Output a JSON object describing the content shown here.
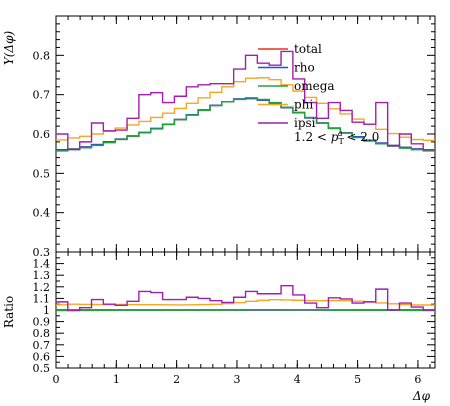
{
  "chart_data": {
    "type": "line",
    "style": "step-histogram",
    "xlabel": "Δφ",
    "ylabel": "Y(Δφ)",
    "ratio_ylabel": "Ratio",
    "xlim": [
      0,
      6.283
    ],
    "ylim": [
      0.3,
      0.9
    ],
    "ratio_ylim": [
      0.5,
      1.5
    ],
    "x_ticks": [
      0,
      1,
      2,
      3,
      4,
      5,
      6
    ],
    "x_tick_labels": [
      "0",
      "1",
      "2",
      "3",
      "4",
      "5",
      "6"
    ],
    "y_ticks": [
      0.3,
      0.4,
      0.5,
      0.6,
      0.7,
      0.8
    ],
    "y_tick_labels": [
      "0.3",
      "0.4",
      "0.5",
      "0.6",
      "0.7",
      "0.8"
    ],
    "ratio_ticks": [
      0.5,
      0.6,
      0.7,
      0.8,
      0.9,
      1,
      1.1,
      1.2,
      1.3,
      1.4
    ],
    "ratio_tick_labels": [
      "0.5",
      "0.6",
      "0.7",
      "0.8",
      "0.9",
      "1",
      "1.1",
      "1.2",
      "1.3",
      "1.4"
    ],
    "legend_position": "top-right",
    "annotation": "1.2 < p_T^a < 2.0",
    "annotation_parts": [
      "1.2 < ",
      "p",
      "T",
      "a",
      " < 2.0"
    ],
    "bin_edges": [
      0,
      0.196,
      0.393,
      0.589,
      0.785,
      0.982,
      1.178,
      1.374,
      1.571,
      1.767,
      1.963,
      2.16,
      2.356,
      2.553,
      2.749,
      2.945,
      3.142,
      3.338,
      3.534,
      3.731,
      3.927,
      4.123,
      4.32,
      4.516,
      4.712,
      4.909,
      5.105,
      5.301,
      5.498,
      5.694,
      5.89,
      6.087,
      6.283
    ],
    "series": [
      {
        "name": "total",
        "color": "#e8301f",
        "values": [
          0.56,
          0.562,
          0.567,
          0.573,
          0.58,
          0.587,
          0.595,
          0.604,
          0.614,
          0.625,
          0.637,
          0.649,
          0.661,
          0.673,
          0.682,
          0.689,
          0.69,
          0.686,
          0.678,
          0.667,
          0.654,
          0.641,
          0.628,
          0.615,
          0.603,
          0.593,
          0.584,
          0.577,
          0.571,
          0.566,
          0.562,
          0.56
        ]
      },
      {
        "name": "rho",
        "color": "#1f4fd6",
        "values": [
          0.56,
          0.562,
          0.567,
          0.573,
          0.58,
          0.587,
          0.595,
          0.604,
          0.614,
          0.625,
          0.637,
          0.649,
          0.661,
          0.673,
          0.682,
          0.689,
          0.69,
          0.686,
          0.678,
          0.667,
          0.654,
          0.641,
          0.628,
          0.615,
          0.603,
          0.593,
          0.584,
          0.577,
          0.571,
          0.566,
          0.562,
          0.56
        ]
      },
      {
        "name": "omega",
        "color": "#22a33a",
        "values": [
          0.557,
          0.561,
          0.565,
          0.571,
          0.578,
          0.586,
          0.594,
          0.603,
          0.613,
          0.624,
          0.636,
          0.648,
          0.66,
          0.672,
          0.682,
          0.688,
          0.692,
          0.688,
          0.68,
          0.668,
          0.655,
          0.642,
          0.628,
          0.614,
          0.602,
          0.591,
          0.582,
          0.575,
          0.569,
          0.564,
          0.56,
          0.557
        ]
      },
      {
        "name": "phi",
        "color": "#f5a623",
        "values": [
          0.585,
          0.59,
          0.594,
          0.6,
          0.607,
          0.615,
          0.623,
          0.632,
          0.642,
          0.653,
          0.665,
          0.678,
          0.692,
          0.706,
          0.72,
          0.733,
          0.742,
          0.743,
          0.738,
          0.725,
          0.709,
          0.693,
          0.678,
          0.664,
          0.651,
          0.638,
          0.625,
          0.612,
          0.601,
          0.592,
          0.586,
          0.584
        ]
      },
      {
        "name": "ipsi",
        "color": "#a01fb0",
        "values": [
          0.6,
          0.56,
          0.58,
          0.628,
          0.608,
          0.61,
          0.64,
          0.7,
          0.705,
          0.68,
          0.696,
          0.72,
          0.725,
          0.728,
          0.728,
          0.765,
          0.8,
          0.78,
          0.775,
          0.81,
          0.74,
          0.68,
          0.64,
          0.68,
          0.66,
          0.63,
          0.625,
          0.68,
          0.57,
          0.6,
          0.575,
          0.56
        ]
      }
    ],
    "ratios": [
      {
        "name": "total",
        "values": [
          1,
          1,
          1,
          1,
          1,
          1,
          1,
          1,
          1,
          1,
          1,
          1,
          1,
          1,
          1,
          1,
          1,
          1,
          1,
          1,
          1,
          1,
          1,
          1,
          1,
          1,
          1,
          1,
          1,
          1,
          1,
          1
        ]
      },
      {
        "name": "rho",
        "values": [
          1,
          1,
          1,
          1,
          1,
          1,
          1,
          1,
          1,
          1,
          1,
          1,
          1,
          1,
          1,
          1,
          1,
          1,
          1,
          1,
          1,
          1,
          1,
          1,
          1,
          1,
          1,
          1,
          1,
          1,
          1,
          1
        ]
      },
      {
        "name": "omega",
        "values": [
          0.995,
          0.998,
          0.996,
          0.997,
          0.997,
          0.998,
          0.998,
          0.998,
          0.998,
          0.998,
          0.998,
          0.998,
          0.998,
          0.998,
          1.0,
          0.999,
          1.003,
          1.003,
          1.003,
          1.001,
          1.002,
          1.002,
          1.0,
          0.998,
          0.998,
          0.997,
          0.997,
          0.997,
          0.997,
          0.996,
          0.996,
          0.995
        ]
      },
      {
        "name": "phi",
        "values": [
          1.045,
          1.05,
          1.048,
          1.047,
          1.047,
          1.048,
          1.047,
          1.046,
          1.046,
          1.045,
          1.044,
          1.045,
          1.047,
          1.049,
          1.056,
          1.064,
          1.075,
          1.083,
          1.089,
          1.087,
          1.084,
          1.081,
          1.08,
          1.08,
          1.08,
          1.076,
          1.07,
          1.061,
          1.053,
          1.046,
          1.043,
          1.043
        ]
      },
      {
        "name": "ipsi",
        "values": [
          1.07,
          0.995,
          1.02,
          1.09,
          1.05,
          1.04,
          1.075,
          1.16,
          1.15,
          1.09,
          1.09,
          1.11,
          1.1,
          1.08,
          1.065,
          1.11,
          1.16,
          1.14,
          1.14,
          1.21,
          1.13,
          1.06,
          1.02,
          1.105,
          1.095,
          1.06,
          1.07,
          1.18,
          1.0,
          1.06,
          1.025,
          1.0
        ]
      }
    ]
  }
}
